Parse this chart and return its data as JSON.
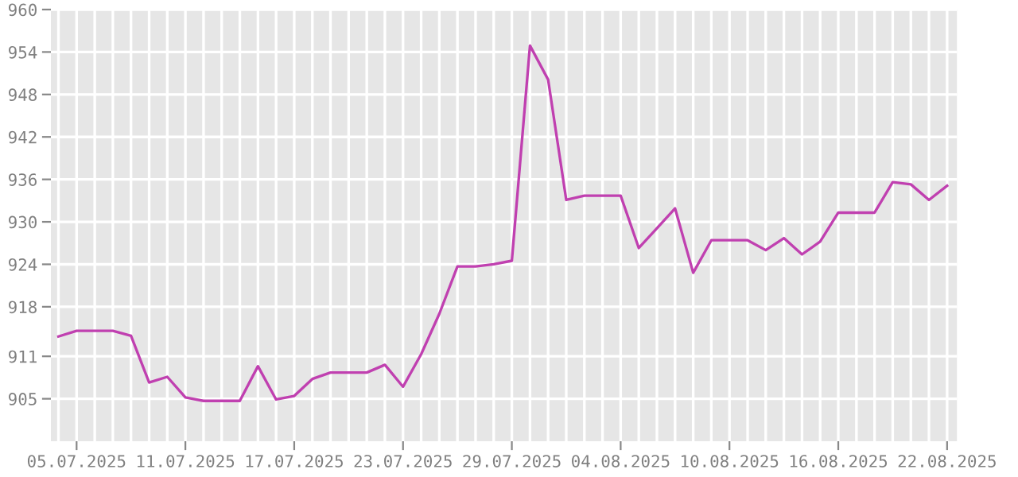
{
  "chart_data": {
    "type": "line",
    "color": "#c040b0",
    "grid": true,
    "marker": "none",
    "line_style": "solid",
    "x": [
      "2025-07-04",
      "2025-07-05",
      "2025-07-06",
      "2025-07-07",
      "2025-07-08",
      "2025-07-09",
      "2025-07-10",
      "2025-07-11",
      "2025-07-12",
      "2025-07-13",
      "2025-07-14",
      "2025-07-15",
      "2025-07-16",
      "2025-07-17",
      "2025-07-18",
      "2025-07-19",
      "2025-07-20",
      "2025-07-21",
      "2025-07-22",
      "2025-07-23",
      "2025-07-24",
      "2025-07-25",
      "2025-07-26",
      "2025-07-27",
      "2025-07-28",
      "2025-07-29",
      "2025-07-30",
      "2025-07-31",
      "2025-08-01",
      "2025-08-02",
      "2025-08-03",
      "2025-08-04",
      "2025-08-05",
      "2025-08-06",
      "2025-08-07",
      "2025-08-08",
      "2025-08-09",
      "2025-08-10",
      "2025-08-11",
      "2025-08-12",
      "2025-08-13",
      "2025-08-14",
      "2025-08-15",
      "2025-08-16",
      "2025-08-17",
      "2025-08-18",
      "2025-08-19",
      "2025-08-20",
      "2025-08-21",
      "2025-08-22"
    ],
    "values": [
      913.8,
      914.6,
      914.6,
      914.6,
      913.9,
      907.3,
      908.1,
      905.2,
      904.7,
      904.7,
      904.7,
      909.6,
      904.9,
      905.4,
      907.8,
      908.7,
      908.7,
      908.7,
      909.8,
      906.7,
      911.3,
      917.0,
      923.7,
      923.7,
      924.0,
      924.5,
      954.9,
      950.1,
      933.1,
      933.7,
      933.7,
      933.7,
      926.3,
      929.1,
      931.9,
      922.8,
      927.4,
      927.4,
      927.4,
      926.0,
      927.7,
      925.4,
      927.2,
      931.3,
      931.3,
      931.3,
      935.6,
      935.3,
      933.1,
      935.1
    ],
    "xlim": [
      "2025-07-03T14:00",
      "2025-08-22T13:00"
    ],
    "xticks": [
      {
        "value": "2025-07-05",
        "label": "05.07.2025"
      },
      {
        "value": "2025-07-11",
        "label": "11.07.2025"
      },
      {
        "value": "2025-07-17",
        "label": "17.07.2025"
      },
      {
        "value": "2025-07-23",
        "label": "23.07.2025"
      },
      {
        "value": "2025-07-29",
        "label": "29.07.2025"
      },
      {
        "value": "2025-08-04",
        "label": "04.08.2025"
      },
      {
        "value": "2025-08-10",
        "label": "10.08.2025"
      },
      {
        "value": "2025-08-16",
        "label": "16.08.2025"
      },
      {
        "value": "2025-08-22",
        "label": "22.08.2025"
      }
    ],
    "ylim": [
      899,
      960
    ],
    "yticks": [
      905,
      911,
      918,
      924,
      930,
      936,
      942,
      948,
      954,
      960
    ]
  }
}
